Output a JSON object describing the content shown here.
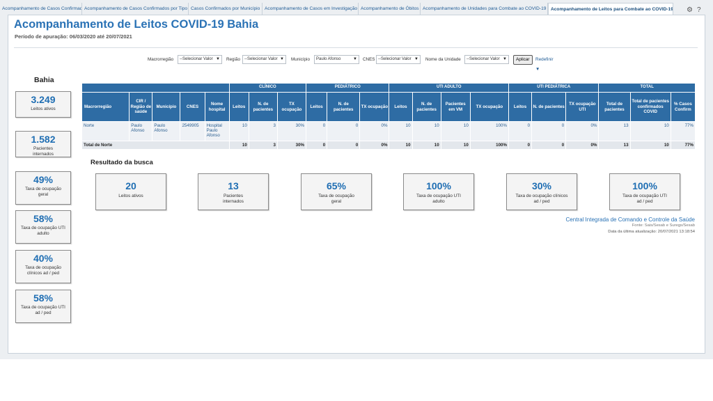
{
  "tabs": [
    {
      "label": "Acompanhamento de Casos Confirmados"
    },
    {
      "label": "Acompanhamento de Casos Confirmados por Tipo"
    },
    {
      "label": "Casos Confirmados por Município"
    },
    {
      "label": "Acompanhamento de Casos em Investigação"
    },
    {
      "label": "Acompanhamento de Óbitos"
    },
    {
      "label": "Acompanhamento de Unidades para Combate ao COVID-19"
    },
    {
      "label": "Acompanhamento de Leitos para Combate ao COVID-19"
    }
  ],
  "header": {
    "title": "Acompanhamento de Leitos COVID-19 Bahia",
    "period": "Período de apuração: 06/03/2020 até 20/07/2021"
  },
  "filters": {
    "macro_label": "Macrorregião",
    "macro_value": "--Selecionar Valor",
    "regiao_label": "Região",
    "regiao_value": "--Selecionar Valor",
    "municipio_label": "Município",
    "municipio_value": "Paulo Afonso",
    "cnes_label": "CNES",
    "cnes_value": "--Selecionar Valor",
    "unidade_label": "Nome da Unidade",
    "unidade_value": "--Selecionar Valor",
    "apply_label": "Aplicar",
    "reset_label": "Redefinir"
  },
  "sidebar": {
    "title": "Bahia",
    "kpis": [
      {
        "value": "3.249",
        "label": "Leitos ativos"
      },
      {
        "value": "1.582",
        "label": "Pacientes internados"
      },
      {
        "value": "49%",
        "label": "Taxa de ocupação geral"
      },
      {
        "value": "58%",
        "label": "Taxa de ocupação UTI adulto"
      },
      {
        "value": "40%",
        "label": "Taxa de ocupação clínicos ad / ped"
      },
      {
        "value": "58%",
        "label": "Taxa de ocupação UTI ad / ped"
      }
    ]
  },
  "table": {
    "groups": {
      "clinico": "CLÍNICO",
      "pediatrico": "PEDIÁTRICO",
      "uti_adulto": "UTI ADULTO",
      "uti_pediatrica": "UTI PEDIÁTRICA",
      "total": "TOTAL"
    },
    "columns": [
      "Macrorregião",
      "CIR / Região de saúde",
      "Município",
      "CNES",
      "Nome hospital",
      "Leitos",
      "N. de pacientes",
      "TX ocupação",
      "Leitos",
      "N. de pacientes",
      "TX ocupação",
      "Leitos",
      "N. de pacientes",
      "Pacientes em VM",
      "TX ocupação",
      "Leitos",
      "N. de pacientes",
      "TX ocupação UTI",
      "Total de pacientes",
      "Total de pacientes confirmados COVID",
      "% Casos Confirm"
    ],
    "row": [
      "Norte",
      "Paulo Afonso",
      "Paulo Afonso",
      "2549905",
      "Hospital Paulo Afonso",
      "10",
      "3",
      "30%",
      "0",
      "0",
      "0%",
      "10",
      "10",
      "10",
      "100%",
      "0",
      "0",
      "0%",
      "13",
      "10",
      "77%"
    ],
    "total_label": "Total de Norte",
    "total": [
      "10",
      "3",
      "30%",
      "0",
      "0",
      "0%",
      "10",
      "10",
      "10",
      "100%",
      "0",
      "0",
      "0%",
      "13",
      "10",
      "77%"
    ]
  },
  "results": {
    "title": "Resultado da busca",
    "cards": [
      {
        "value": "20",
        "label": "Leitos ativos"
      },
      {
        "value": "13",
        "label": "Pacientes internados"
      },
      {
        "value": "65%",
        "label": "Taxa de ocupação geral"
      },
      {
        "value": "100%",
        "label": "Taxa de ocupação UTI adulto"
      },
      {
        "value": "30%",
        "label": "Taxa de ocupação clínicos ad / ped"
      },
      {
        "value": "100%",
        "label": "Taxa de ocupação UTI ad / ped"
      }
    ]
  },
  "footer": {
    "org": "Central Integrada de Comando e Controle da Saúde",
    "source": "Fonte: Sais/Sesab e Suregs/Sesab",
    "updated": "Data da última atualização: 20/07/2021 13:18:54"
  }
}
